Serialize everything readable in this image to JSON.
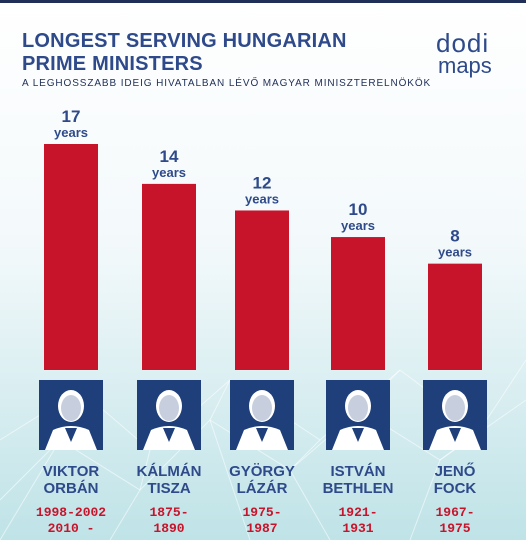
{
  "header": {
    "title_line1": "LONGEST SERVING HUNGARIAN",
    "title_line2": "PRIME MINISTERS",
    "subtitle": "A LEGHOSSZABB IDEIG HIVATALBAN LÉVŐ MAGYAR MINISZTERELNÖKÖK"
  },
  "logo": {
    "line1": "dodi",
    "line2": "maps"
  },
  "colors": {
    "bar": "#c8142b",
    "text": "#2e4a8a",
    "portrait": "#1f3f7a"
  },
  "chart_data": {
    "type": "bar",
    "categories": [
      "VIKTOR ORBÁN",
      "KÁLMÁN TISZA",
      "GYÖRGY LÁZÁR",
      "ISTVÁN BETHLEN",
      "JENŐ FOCK"
    ],
    "values": [
      17,
      14,
      12,
      10,
      8
    ],
    "value_unit_label": "years",
    "title": "LONGEST SERVING HUNGARIAN PRIME MINISTERS",
    "subtitle": "A LEGHOSSZABB IDEIG HIVATALBAN LÉVŐ MAGYAR MINISZTERELNÖKÖK",
    "ylim": [
      0,
      17
    ]
  },
  "people": [
    {
      "first": "VIKTOR",
      "last": "ORBÁN",
      "years1": "1998-2002",
      "years2": "2010 -",
      "portrait_icon": "portrait-icon"
    },
    {
      "first": "KÁLMÁN",
      "last": "TISZA",
      "years1": "1875-",
      "years2": "1890",
      "portrait_icon": "portrait-icon"
    },
    {
      "first": "GYÖRGY",
      "last": "LÁZÁR",
      "years1": "1975-",
      "years2": "1987",
      "portrait_icon": "portrait-icon"
    },
    {
      "first": "ISTVÁN",
      "last": "BETHLEN",
      "years1": "1921-",
      "years2": "1931",
      "portrait_icon": "portrait-icon"
    },
    {
      "first": "JENŐ",
      "last": "FOCK",
      "years1": "1967-",
      "years2": "1975",
      "portrait_icon": "portrait-icon"
    }
  ]
}
